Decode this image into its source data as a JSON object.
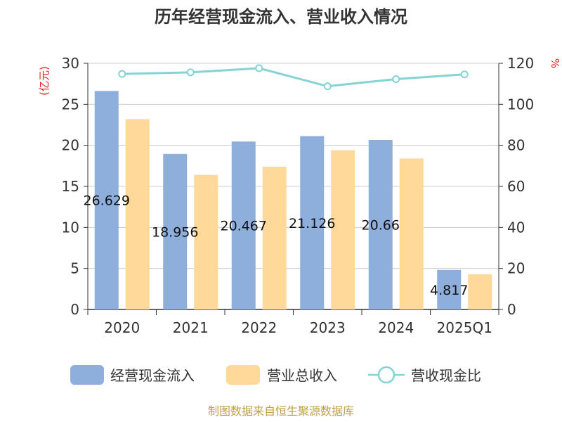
{
  "title": "历年经营现金流入、营业收入情况",
  "source": "制图数据来自恒生聚源数据库",
  "chart_data": {
    "type": "bar",
    "title": "历年经营现金流入、营业收入情况",
    "categories": [
      "2020",
      "2021",
      "2022",
      "2023",
      "2024",
      "2025Q1"
    ],
    "series": [
      {
        "name": "经营现金流入",
        "kind": "bar",
        "axis": "left",
        "color": "#8eaedb",
        "values": [
          26.629,
          18.956,
          20.467,
          21.126,
          20.66,
          4.817
        ],
        "labels": [
          "26.629",
          "18.956",
          "20.467",
          "21.126",
          "20.66",
          "4.817"
        ]
      },
      {
        "name": "营业总收入",
        "kind": "bar",
        "axis": "left",
        "color": "#ffd99a",
        "values": [
          23.2,
          16.4,
          17.4,
          19.4,
          18.4,
          4.3
        ]
      },
      {
        "name": "营收现金比",
        "kind": "line",
        "axis": "right",
        "color": "#86d3d5",
        "values": [
          114.8,
          115.6,
          117.6,
          108.8,
          112.3,
          114.6
        ]
      }
    ],
    "left_axis": {
      "unit_label": "(亿元)",
      "min": 0,
      "max": 30,
      "ticks": [
        0,
        5,
        10,
        15,
        20,
        25,
        30
      ]
    },
    "right_axis": {
      "unit_label": "%",
      "min": 0,
      "max": 120,
      "ticks": [
        0,
        20,
        40,
        60,
        80,
        100,
        120
      ]
    },
    "grid": true,
    "legend_position": "bottom"
  }
}
